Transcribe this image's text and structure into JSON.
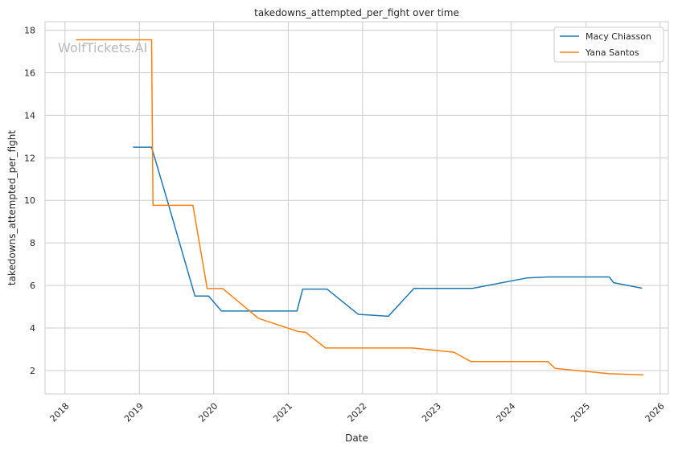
{
  "chart_data": {
    "type": "line",
    "title": "takedowns_attempted_per_fight over time",
    "xlabel": "Date",
    "ylabel": "takedowns_attempted_per_fight",
    "watermark": "WolfTickets.AI",
    "xlim": [
      "2017-09-25",
      "2026-02-10"
    ],
    "ylim": [
      0.9,
      18.4
    ],
    "xticks": [
      "2018-01-01",
      "2019-01-01",
      "2020-01-01",
      "2021-01-01",
      "2022-01-01",
      "2023-01-01",
      "2024-01-01",
      "2025-01-01",
      "2026-01-01"
    ],
    "xtick_labels": [
      "2018",
      "2019",
      "2020",
      "2021",
      "2022",
      "2023",
      "2024",
      "2025",
      "2026"
    ],
    "yticks": [
      2,
      4,
      6,
      8,
      10,
      12,
      14,
      16,
      18
    ],
    "grid": true,
    "legend_position": "top-right",
    "series": [
      {
        "name": "Macy Chiasson",
        "color": "#1f77b4",
        "points": [
          [
            "2018-12-01",
            12.5
          ],
          [
            "2019-03-02",
            12.5
          ],
          [
            "2019-05-18",
            10.0
          ],
          [
            "2019-10-01",
            5.5
          ],
          [
            "2019-12-07",
            5.5
          ],
          [
            "2020-02-08",
            4.8
          ],
          [
            "2021-02-13",
            4.8
          ],
          [
            "2021-03-13",
            5.83
          ],
          [
            "2021-07-10",
            5.83
          ],
          [
            "2021-12-11",
            4.64
          ],
          [
            "2022-05-07",
            4.55
          ],
          [
            "2022-09-10",
            5.86
          ],
          [
            "2023-06-24",
            5.86
          ],
          [
            "2024-03-16",
            6.35
          ],
          [
            "2024-06-29",
            6.4
          ],
          [
            "2025-04-26",
            6.4
          ],
          [
            "2025-05-17",
            6.13
          ],
          [
            "2025-10-04",
            5.87
          ]
        ]
      },
      {
        "name": "Yana Santos",
        "color": "#ff7f0e",
        "points": [
          [
            "2018-02-24",
            17.55
          ],
          [
            "2019-03-02",
            17.55
          ],
          [
            "2019-03-09",
            9.77
          ],
          [
            "2019-09-21",
            9.77
          ],
          [
            "2019-11-30",
            5.85
          ],
          [
            "2020-02-15",
            5.85
          ],
          [
            "2020-08-08",
            4.45
          ],
          [
            "2021-02-20",
            3.83
          ],
          [
            "2021-03-27",
            3.8
          ],
          [
            "2021-07-03",
            3.06
          ],
          [
            "2022-09-03",
            3.06
          ],
          [
            "2023-03-25",
            2.86
          ],
          [
            "2023-06-17",
            2.42
          ],
          [
            "2024-06-29",
            2.42
          ],
          [
            "2024-08-03",
            2.1
          ],
          [
            "2025-04-26",
            1.85
          ],
          [
            "2025-10-11",
            1.8
          ]
        ]
      }
    ]
  }
}
